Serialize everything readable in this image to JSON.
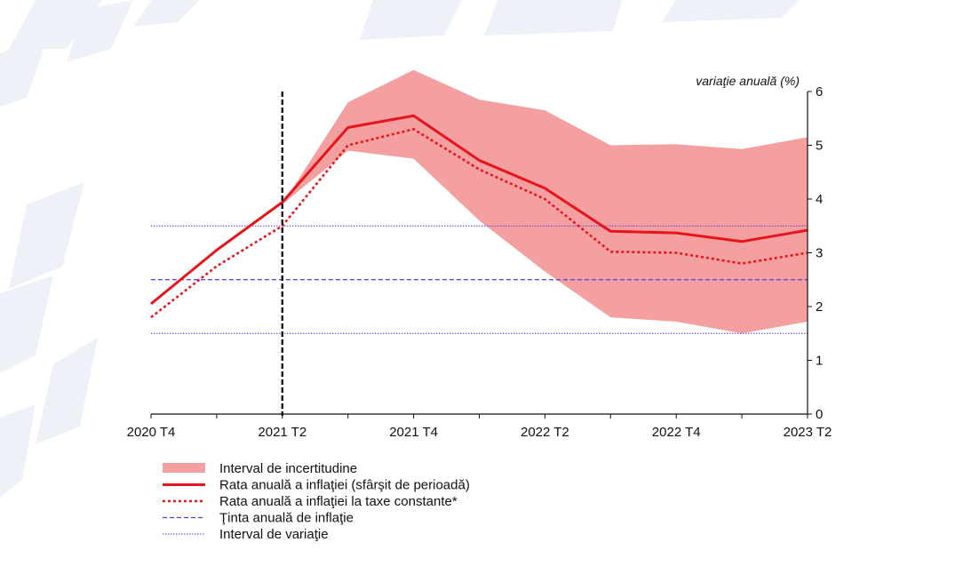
{
  "chart_data": {
    "type": "line",
    "title": "",
    "xlabel": "",
    "ylabel": "variaţie anuală (%)",
    "x_ticks": [
      "2020 T4",
      "",
      "2021 T2",
      "",
      "2021 T4",
      "",
      "2022 T2",
      "",
      "2022 T4",
      "",
      "2023 T2"
    ],
    "x_tick_labels": [
      "2020 T4",
      "2021 T2",
      "2021 T4",
      "2022 T2",
      "2022 T4",
      "2023 T2"
    ],
    "ylim": [
      0,
      6
    ],
    "y_ticks": [
      0,
      1,
      2,
      3,
      4,
      5,
      6
    ],
    "y_axis_side": "right",
    "forecast_start": "2021 T2",
    "grid": false,
    "legend_position": "bottom-left",
    "uncertainty_band": {
      "name": "Interval de incertitudine",
      "color": "#f4a0a0",
      "x_start_index": 2,
      "lower": [
        3.9,
        4.9,
        4.75,
        3.6,
        2.65,
        1.8,
        1.72,
        1.5,
        1.72
      ],
      "upper": [
        3.9,
        5.8,
        6.4,
        5.85,
        5.65,
        5.0,
        5.02,
        4.93,
        5.15
      ]
    },
    "series": [
      {
        "name": "Rata anuală a inflaţiei (sfârşit de perioadă)",
        "style": "solid",
        "color": "#e8141b",
        "values": [
          2.05,
          3.05,
          3.94,
          5.33,
          5.55,
          4.72,
          4.2,
          3.4,
          3.37,
          3.21,
          3.42
        ]
      },
      {
        "name": "Rata anuală a inflaţiei la taxe constante*",
        "style": "dotted",
        "color": "#e8141b",
        "values": [
          1.8,
          2.75,
          3.5,
          5.0,
          5.3,
          4.55,
          4.0,
          3.02,
          3.0,
          2.8,
          3.0
        ]
      }
    ],
    "reference_lines": [
      {
        "name": "Ţinta anuală de inflaţie",
        "value": 2.5,
        "style": "dashed",
        "color": "#5b3cdc"
      },
      {
        "name": "Interval de variaţie",
        "values": [
          1.5,
          3.5
        ],
        "style": "dotted",
        "color": "#5b3cdc"
      }
    ]
  }
}
